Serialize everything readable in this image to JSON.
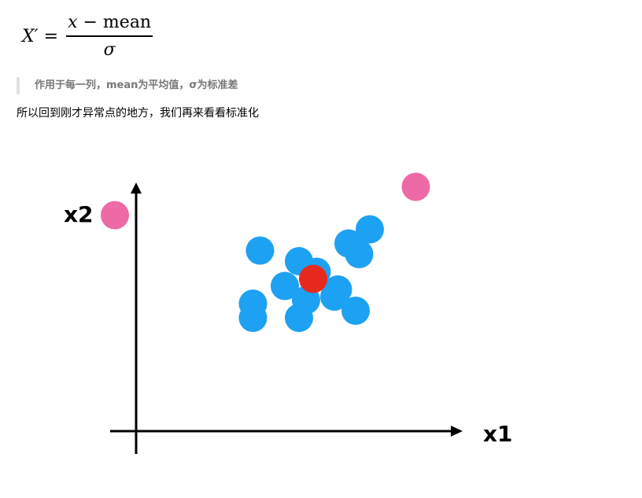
{
  "formula": {
    "lhs": "X′ =",
    "numerator_var": "x",
    "numerator_rest": " − mean",
    "denominator": "σ"
  },
  "note": "作用于每一列，mean为平均值，σ为标准差",
  "paragraph": "所以回到刚才异常点的地方，我们再来看看标准化",
  "chart_data": {
    "type": "scatter",
    "xlabel": "x1",
    "ylabel": "x2",
    "colors": {
      "normal": "#1da1f2",
      "outlier": "#ee6aa7",
      "center": "#e8291e"
    },
    "series": [
      {
        "name": "",
        "kind": "normal",
        "points": [
          [
            3.5,
            5.1
          ],
          [
            6.0,
            5.3
          ],
          [
            6.3,
            5.0
          ],
          [
            4.6,
            4.8
          ],
          [
            5.1,
            4.5
          ],
          [
            6.6,
            5.7
          ],
          [
            4.2,
            4.1
          ],
          [
            5.7,
            4.0
          ],
          [
            5.6,
            3.8
          ],
          [
            4.8,
            3.7
          ],
          [
            3.3,
            3.6
          ],
          [
            6.2,
            3.4
          ],
          [
            3.3,
            3.2
          ],
          [
            4.6,
            3.2
          ]
        ]
      },
      {
        "name": "",
        "kind": "outlier",
        "points": [
          [
            -0.6,
            6.1
          ],
          [
            7.9,
            6.9
          ]
        ]
      },
      {
        "name": "",
        "kind": "center",
        "points": [
          [
            5.0,
            4.3
          ]
        ]
      }
    ]
  }
}
